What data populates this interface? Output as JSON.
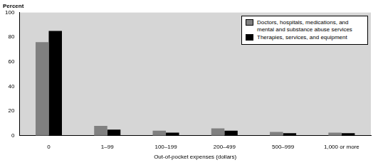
{
  "chart_data": {
    "type": "bar",
    "y_label": "Percent",
    "x_label": "Out-of-pocket expenses (dollars)",
    "categories": [
      "0",
      "1–99",
      "100–199",
      "200–499",
      "500–999",
      "1,000 or more"
    ],
    "series": [
      {
        "name": "Doctors, hospitals, medications, and mental and substance abuse services",
        "color": "#808080",
        "values": [
          76,
          8,
          4,
          6,
          3,
          2.5
        ]
      },
      {
        "name": "Therapies, services, and equipment",
        "color": "#000000",
        "values": [
          85,
          5,
          2.5,
          4,
          2,
          2
        ]
      }
    ],
    "ylim": [
      0,
      100
    ],
    "yticks": [
      0,
      20,
      40,
      60,
      80,
      100
    ],
    "grid": false,
    "legend": "upper right"
  }
}
